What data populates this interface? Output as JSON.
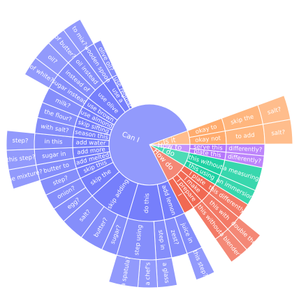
{
  "chart_data": {
    "type": "sunburst",
    "title": "",
    "palette": {
      "Can I": "#636efa",
      "Is it": "#ffa15a",
      "How do": "#ef553b",
      "I do": "#00cc96",
      "How to": "#ab63fa"
    },
    "root": {
      "name": "",
      "children": [
        {
          "name": "Can I",
          "value": 70,
          "children": [
            {
              "name": "add lemon",
              "value": 4,
              "children": [
                {
                  "name": "juice in",
                  "value": 2,
                  "children": [
                    {
                      "name": "this step?",
                      "value": 2
                    }
                  ]
                },
                {
                  "name": "zest?",
                  "value": 2
                }
              ]
            },
            {
              "name": "do this",
              "value": 7,
              "children": [
                {
                  "name": "step in",
                  "value": 2,
                  "children": [
                    {
                      "name": "a glass",
                      "value": 2
                    }
                  ]
                },
                {
                  "name": "step using",
                  "value": 5,
                  "children": [
                    {
                      "name": "a chef's",
                      "value": 2
                    },
                    {
                      "name": "a spatula?",
                      "value": 3
                    }
                  ]
                }
              ]
            },
            {
              "name": "skip adding",
              "value": 8,
              "children": [
                {
                  "name": "sugar?",
                  "value": 2
                },
                {
                  "name": "butter?",
                  "value": 3
                },
                {
                  "name": "salt?",
                  "value": 3
                }
              ]
            },
            {
              "name": "skip the",
              "value": 4,
              "children": [
                {
                  "name": "egg?",
                  "value": 2
                },
                {
                  "name": "onion?",
                  "value": 2
                }
              ]
            },
            {
              "name": "skip this",
              "value": 2,
              "children": [
                {
                  "name": "step?",
                  "value": 2
                }
              ]
            },
            {
              "name": "add melted",
              "value": 2,
              "children": [
                {
                  "name": "butter to",
                  "value": 2,
                  "children": [
                    {
                      "name": "the mixture?",
                      "value": 2
                    }
                  ]
                }
              ]
            },
            {
              "name": "add more",
              "value": 2,
              "children": [
                {
                  "name": "sugar in",
                  "value": 2,
                  "children": [
                    {
                      "name": "this step?",
                      "value": 2
                    }
                  ]
                }
              ]
            },
            {
              "name": "add water",
              "value": 2,
              "children": [
                {
                  "name": "in this",
                  "value": 2,
                  "children": [
                    {
                      "name": "step?",
                      "value": 2
                    }
                  ]
                }
              ]
            },
            {
              "name": "season this",
              "value": 2,
              "children": [
                {
                  "name": "with salt?",
                  "value": 2
                }
              ]
            },
            {
              "name": "skip sifting",
              "value": 2,
              "children": [
                {
                  "name": "the flour?",
                  "value": 2
                }
              ]
            },
            {
              "name": "use almond",
              "value": 2,
              "children": [
                {
                  "name": "milk?",
                  "value": 2
                }
              ]
            },
            {
              "name": "use brown",
              "value": 2,
              "children": [
                {
                  "name": "sugar instead",
                  "value": 2,
                  "children": [
                    {
                      "name": "of white?",
                      "value": 2
                    }
                  ]
                }
              ]
            },
            {
              "name": "use olive",
              "value": 4,
              "children": [
                {
                  "name": "instead of",
                  "value": 2,
                  "children": [
                    {
                      "name": "oil?",
                      "value": 2
                    }
                  ]
                },
                {
                  "name": "oil instead",
                  "value": 2,
                  "children": [
                    {
                      "name": "of butter?",
                      "value": 2
                    }
                  ]
                }
              ]
            },
            {
              "name": "use a",
              "value": 2,
              "children": [
                {
                  "name": "wooden spoon",
                  "value": 2,
                  "children": [
                    {
                      "name": "to mix?",
                      "value": 2
                    }
                  ]
                }
              ]
            },
            {
              "name": "use regular",
              "value": 1,
              "children": [
                {
                  "name": "olive oil?",
                  "value": 1
                }
              ]
            }
          ]
        },
        {
          "name": "How do",
          "value": 8,
          "children": [
            {
              "name": "I plate",
              "value": 2,
              "children": [
                {
                  "name": "this differently?",
                  "value": 2
                }
              ]
            },
            {
              "name": "I make",
              "value": 2,
              "children": [
                {
                  "name": "this with",
                  "value": 2,
                  "children": [
                    {
                      "name": "double the",
                      "value": 2
                    }
                  ]
                }
              ]
            },
            {
              "name": "I prepare",
              "value": 2,
              "children": [
                {
                  "name": "this without",
                  "value": 2,
                  "children": [
                    {
                      "name": "a blender?",
                      "value": 2
                    }
                  ]
                }
              ]
            },
            {
              "name": "I",
              "value": 2
            }
          ]
        },
        {
          "name": "I do",
          "value": 5,
          "children": [
            {
              "name": "this without",
              "value": 3,
              "children": [
                {
                  "name": "a measuring",
                  "value": 3
                }
              ]
            },
            {
              "name": "this using",
              "value": 2,
              "children": [
                {
                  "name": "an immersion",
                  "value": 2
                }
              ]
            }
          ]
        },
        {
          "name": "How to",
          "value": 3,
          "children": [
            {
              "name": "serve this",
              "value": 1.5,
              "children": [
                {
                  "name": "differently?",
                  "value": 1.5
                }
              ]
            },
            {
              "name": "plate this",
              "value": 1.5,
              "children": [
                {
                  "name": "differently?",
                  "value": 1.5
                }
              ]
            }
          ]
        },
        {
          "name": "Is it",
          "value": 5,
          "children": [
            {
              "name": "okay to",
              "value": 2.5,
              "children": [
                {
                  "name": "skip the",
                  "value": 2.5,
                  "children": [
                    {
                      "name": "salt?",
                      "value": 2.5
                    }
                  ]
                }
              ]
            },
            {
              "name": "okay not",
              "value": 2.5,
              "children": [
                {
                  "name": "to add",
                  "value": 2.5,
                  "children": [
                    {
                      "name": "salt?",
                      "value": 2.5
                    }
                  ]
                }
              ]
            }
          ]
        }
      ]
    }
  }
}
